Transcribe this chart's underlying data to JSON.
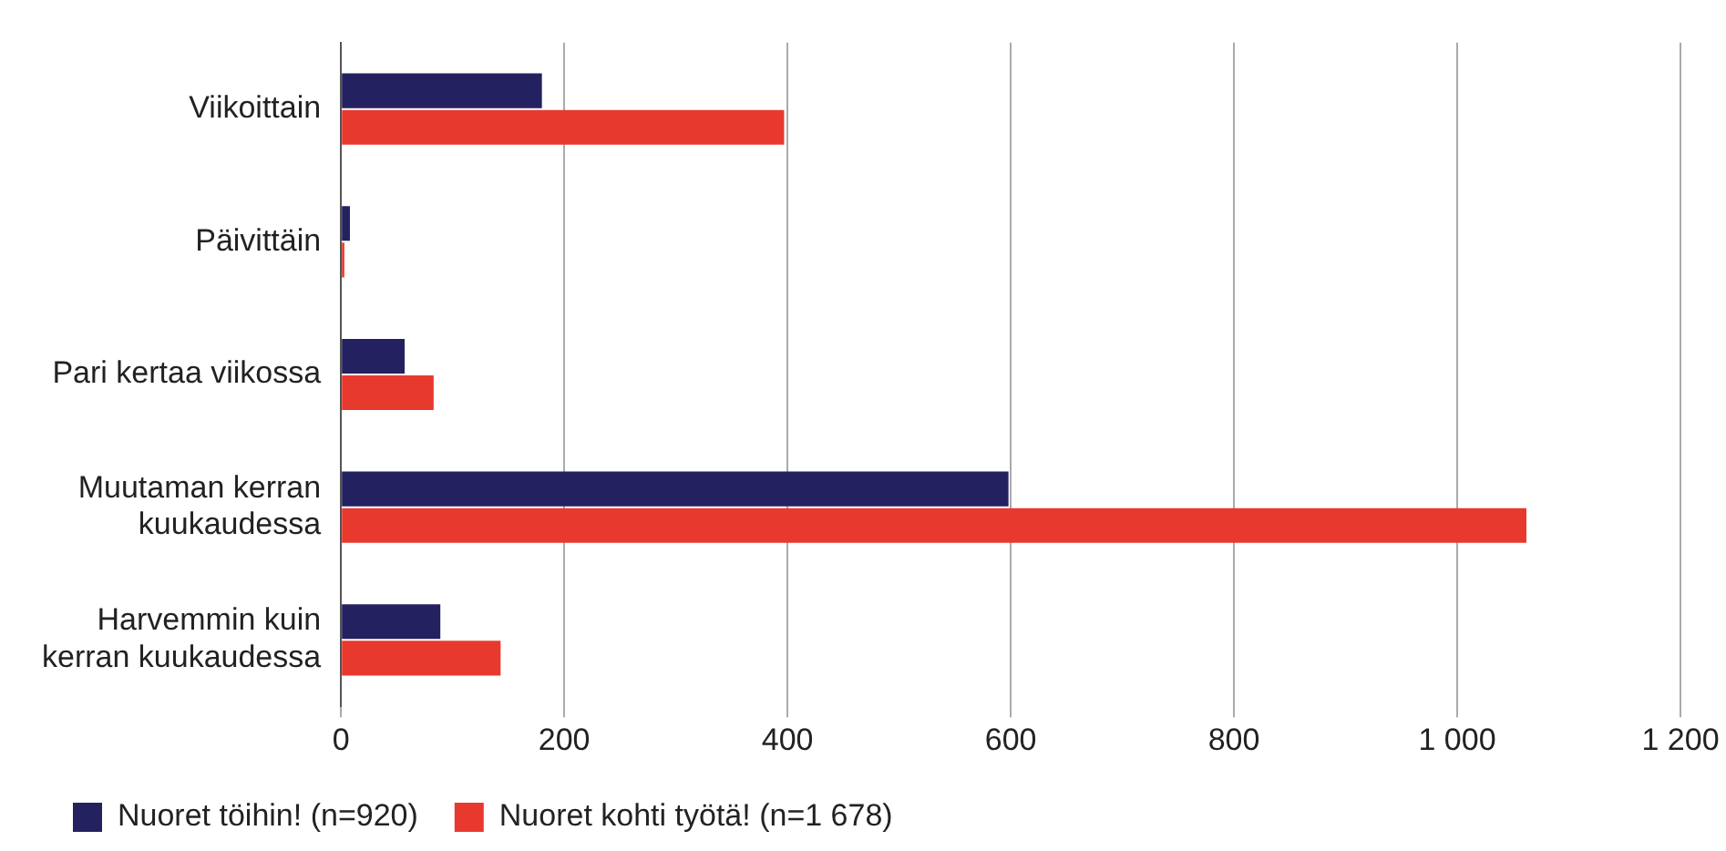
{
  "chart_data": {
    "type": "bar",
    "orientation": "horizontal",
    "categories": [
      "Viikoittain",
      "Päivittäin",
      "Pari kertaa viikossa",
      "Muutaman kerran kuukaudessa",
      "Harvemmin kuin kerran kuukaudessa"
    ],
    "series": [
      {
        "name": "Nuoret töihin! (n=920)",
        "color": "#23215f",
        "values": [
          180,
          8,
          57,
          598,
          89
        ]
      },
      {
        "name": "Nuoret kohti työtä! (n=1 678)",
        "color": "#e8392f",
        "values": [
          397,
          3,
          83,
          1062,
          143
        ]
      }
    ],
    "xlim": [
      0,
      1200
    ],
    "xticks": [
      0,
      200,
      400,
      600,
      800,
      {
        "value": 1000,
        "label": "1 000"
      },
      {
        "value": 1200,
        "label": "1 200"
      }
    ],
    "grid": "x",
    "legend": "bottom left"
  }
}
